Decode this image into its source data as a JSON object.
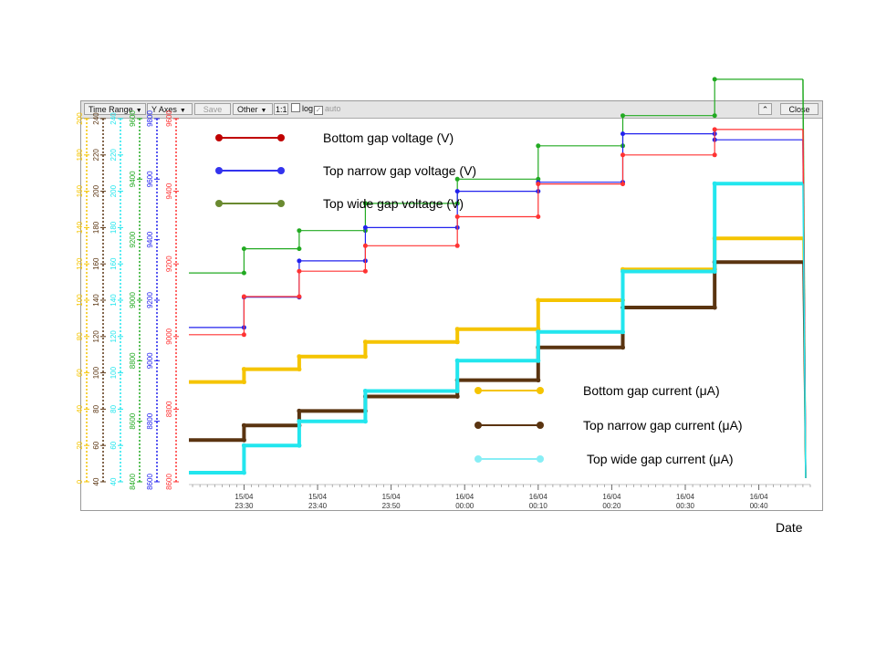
{
  "toolbar": {
    "time_range": "Time Range",
    "y_axes": "Y Axes",
    "save": "Save",
    "other": "Other",
    "ratio": "1:1",
    "log": "log",
    "auto": "auto",
    "close": "Close"
  },
  "colors": {
    "bottom_voltage": "#ff3333",
    "top_narrow_voltage": "#2222ee",
    "top_wide_voltage": "#22aa22",
    "bottom_current": "#f5c400",
    "top_narrow_current": "#5a3410",
    "top_wide_current": "#22e6ee"
  },
  "chart_data": {
    "type": "line",
    "xlabel": "Date",
    "x_tick_labels": [
      [
        "15/04",
        "23:30"
      ],
      [
        "15/04",
        "23:40"
      ],
      [
        "15/04",
        "23:50"
      ],
      [
        "16/04",
        "00:00"
      ],
      [
        "16/04",
        "00:10"
      ],
      [
        "16/04",
        "00:20"
      ],
      [
        "16/04",
        "00:30"
      ],
      [
        "16/04",
        "00:40"
      ]
    ],
    "x_ticks_min": [
      30,
      40,
      50,
      60,
      70,
      80,
      90,
      100
    ],
    "x_range_min": [
      22.5,
      107
    ],
    "legend": [
      {
        "label": "Bottom gap voltage (V)",
        "color": "#c00000"
      },
      {
        "label": "Top narrow gap voltage (V)",
        "color": "#3333ee"
      },
      {
        "label": "Top wide gap voltage (V)",
        "color": "#6a8a30"
      },
      {
        "label": "Bottom gap current (μA)",
        "color": "#f5c400"
      },
      {
        "label": "Top narrow gap current (μA)",
        "color": "#5a3410"
      },
      {
        "label": "Top wide gap current (μA)",
        "color": "#88eef5"
      }
    ],
    "y_axes": [
      {
        "color": "#f5c400",
        "range": [
          0,
          200
        ],
        "ticks": [
          "0",
          "20",
          "40",
          "60",
          "80",
          "100",
          "120",
          "140",
          "160",
          "180",
          "200"
        ]
      },
      {
        "color": "#5a3410",
        "range": [
          40,
          240
        ],
        "ticks": [
          "40",
          "60",
          "80",
          "100",
          "120",
          "140",
          "160",
          "180",
          "200",
          "220",
          "240"
        ]
      },
      {
        "color": "#22e6ee",
        "range": [
          0,
          240
        ],
        "ticks": [
          "40",
          "60",
          "80",
          "100",
          "120",
          "140",
          "160",
          "180",
          "200",
          "220",
          "240"
        ]
      },
      {
        "color": "#22aa22",
        "range": [
          8400,
          9600
        ],
        "ticks": [
          "8400",
          "8600",
          "8800",
          "9000",
          "9200",
          "9400",
          "9600"
        ]
      },
      {
        "color": "#2222ee",
        "range": [
          8600,
          9800
        ],
        "ticks": [
          "8600",
          "8800",
          "9000",
          "9200",
          "9400",
          "9600",
          "9800"
        ]
      },
      {
        "color": "#ff3333",
        "range": [
          8600,
          9600
        ],
        "ticks": [
          "8600",
          "8800",
          "9000",
          "9200",
          "9400",
          "9600"
        ]
      }
    ],
    "series": [
      {
        "name": "Top wide gap voltage (V)",
        "color": "#22aa22",
        "axis": 3,
        "x": [
          22.5,
          30,
          30,
          37.5,
          37.5,
          46.5,
          46.5,
          59,
          59,
          70,
          70,
          81.5,
          81.5,
          94,
          94,
          106
        ],
        "y": [
          9090,
          9090,
          9170,
          9170,
          9230,
          9230,
          9320,
          9320,
          9400,
          9400,
          9510,
          9510,
          9610,
          9610,
          9730,
          9730
        ]
      },
      {
        "name": "Top narrow gap voltage (V)",
        "color": "#2222ee",
        "axis": 4,
        "x": [
          22.5,
          30,
          30,
          37.5,
          37.5,
          46.5,
          46.5,
          59,
          59,
          70,
          70,
          81.5,
          81.5,
          94,
          94,
          106
        ],
        "y": [
          9110,
          9110,
          9210,
          9210,
          9330,
          9330,
          9440,
          9440,
          9560,
          9560,
          9590,
          9590,
          9750,
          9750,
          9730,
          9730
        ]
      },
      {
        "name": "Bottom gap voltage (V)",
        "color": "#ff3333",
        "axis": 5,
        "x": [
          22.5,
          30,
          30,
          37.5,
          37.5,
          46.5,
          46.5,
          59,
          59,
          70,
          70,
          81.5,
          81.5,
          94,
          94,
          106
        ],
        "y": [
          9005,
          9005,
          9110,
          9110,
          9180,
          9180,
          9250,
          9250,
          9330,
          9330,
          9420,
          9420,
          9500,
          9500,
          9570,
          9570
        ]
      },
      {
        "name": "Bottom gap current (μA)",
        "color": "#f5c400",
        "axis": 0,
        "x": [
          22.5,
          30,
          30,
          37.5,
          37.5,
          46.5,
          46.5,
          59,
          59,
          70,
          70,
          81.5,
          81.5,
          94,
          94,
          106
        ],
        "y": [
          55,
          55,
          62,
          62,
          69,
          69,
          77,
          77,
          84,
          84,
          100,
          100,
          117,
          117,
          134,
          134
        ]
      },
      {
        "name": "Top narrow gap current (μA)",
        "color": "#5a3410",
        "axis": 1,
        "x": [
          22.5,
          30,
          30,
          37.5,
          37.5,
          46.5,
          46.5,
          59,
          59,
          70,
          70,
          81.5,
          81.5,
          94,
          94,
          106
        ],
        "y": [
          63,
          63,
          71,
          71,
          79,
          79,
          87,
          87,
          96,
          96,
          114,
          114,
          136,
          136,
          161,
          161
        ]
      },
      {
        "name": "Top wide gap current (μA)",
        "color": "#22e6ee",
        "axis": 2,
        "x": [
          22.5,
          30,
          30,
          37.5,
          37.5,
          46.5,
          46.5,
          59,
          59,
          70,
          70,
          81.5,
          81.5,
          94,
          94,
          106
        ],
        "y": [
          6,
          6,
          24,
          24,
          40,
          40,
          60,
          60,
          80,
          80,
          99,
          99,
          139,
          139,
          197,
          197
        ]
      }
    ]
  }
}
